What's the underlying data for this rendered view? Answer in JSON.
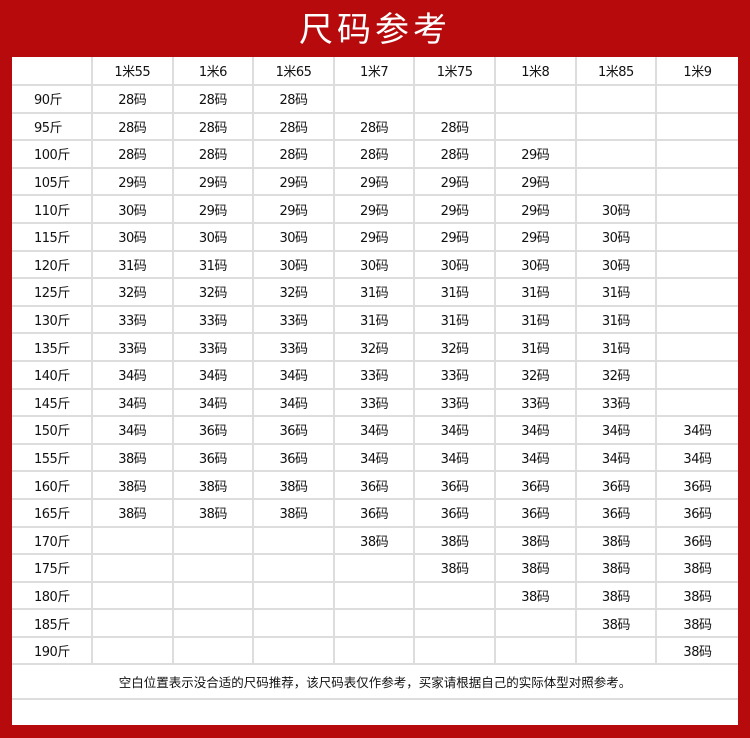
{
  "title": "尺码参考",
  "colors": {
    "background": "#b70a0c",
    "panel": "#ffffff",
    "grid_lines": "#dddddd"
  },
  "table": {
    "heights": [
      "1米55",
      "1米6",
      "1米65",
      "1米7",
      "1米75",
      "1米8",
      "1米85",
      "1米9"
    ],
    "rows": [
      {
        "weight": "90斤",
        "sizes": [
          "28码",
          "28码",
          "28码",
          "",
          "",
          "",
          "",
          ""
        ]
      },
      {
        "weight": "95斤",
        "sizes": [
          "28码",
          "28码",
          "28码",
          "28码",
          "28码",
          "",
          "",
          ""
        ]
      },
      {
        "weight": "100斤",
        "sizes": [
          "28码",
          "28码",
          "28码",
          "28码",
          "28码",
          "29码",
          "",
          ""
        ]
      },
      {
        "weight": "105斤",
        "sizes": [
          "29码",
          "29码",
          "29码",
          "29码",
          "29码",
          "29码",
          "",
          ""
        ]
      },
      {
        "weight": "110斤",
        "sizes": [
          "30码",
          "29码",
          "29码",
          "29码",
          "29码",
          "29码",
          "30码",
          ""
        ]
      },
      {
        "weight": "115斤",
        "sizes": [
          "30码",
          "30码",
          "30码",
          "29码",
          "29码",
          "29码",
          "30码",
          ""
        ]
      },
      {
        "weight": "120斤",
        "sizes": [
          "31码",
          "31码",
          "30码",
          "30码",
          "30码",
          "30码",
          "30码",
          ""
        ]
      },
      {
        "weight": "125斤",
        "sizes": [
          "32码",
          "32码",
          "32码",
          "31码",
          "31码",
          "31码",
          "31码",
          ""
        ]
      },
      {
        "weight": "130斤",
        "sizes": [
          "33码",
          "33码",
          "33码",
          "31码",
          "31码",
          "31码",
          "31码",
          ""
        ]
      },
      {
        "weight": "135斤",
        "sizes": [
          "33码",
          "33码",
          "33码",
          "32码",
          "32码",
          "31码",
          "31码",
          ""
        ]
      },
      {
        "weight": "140斤",
        "sizes": [
          "34码",
          "34码",
          "34码",
          "33码",
          "33码",
          "32码",
          "32码",
          ""
        ]
      },
      {
        "weight": "145斤",
        "sizes": [
          "34码",
          "34码",
          "34码",
          "33码",
          "33码",
          "33码",
          "33码",
          ""
        ]
      },
      {
        "weight": "150斤",
        "sizes": [
          "34码",
          "36码",
          "36码",
          "34码",
          "34码",
          "34码",
          "34码",
          "34码"
        ]
      },
      {
        "weight": "155斤",
        "sizes": [
          "38码",
          "36码",
          "36码",
          "34码",
          "34码",
          "34码",
          "34码",
          "34码"
        ]
      },
      {
        "weight": "160斤",
        "sizes": [
          "38码",
          "38码",
          "38码",
          "36码",
          "36码",
          "36码",
          "36码",
          "36码"
        ]
      },
      {
        "weight": "165斤",
        "sizes": [
          "38码",
          "38码",
          "38码",
          "36码",
          "36码",
          "36码",
          "36码",
          "36码"
        ]
      },
      {
        "weight": "170斤",
        "sizes": [
          "",
          "",
          "",
          "38码",
          "38码",
          "38码",
          "38码",
          "36码"
        ]
      },
      {
        "weight": "175斤",
        "sizes": [
          "",
          "",
          "",
          "",
          "38码",
          "38码",
          "38码",
          "38码"
        ]
      },
      {
        "weight": "180斤",
        "sizes": [
          "",
          "",
          "",
          "",
          "",
          "38码",
          "38码",
          "38码"
        ]
      },
      {
        "weight": "185斤",
        "sizes": [
          "",
          "",
          "",
          "",
          "",
          "",
          "38码",
          "38码"
        ]
      },
      {
        "weight": "190斤",
        "sizes": [
          "",
          "",
          "",
          "",
          "",
          "",
          "",
          "38码"
        ]
      }
    ]
  },
  "note": "空白位置表示没合适的尺码推荐，该尺码表仅作参考，买家请根据自己的实际体型对照参考。"
}
